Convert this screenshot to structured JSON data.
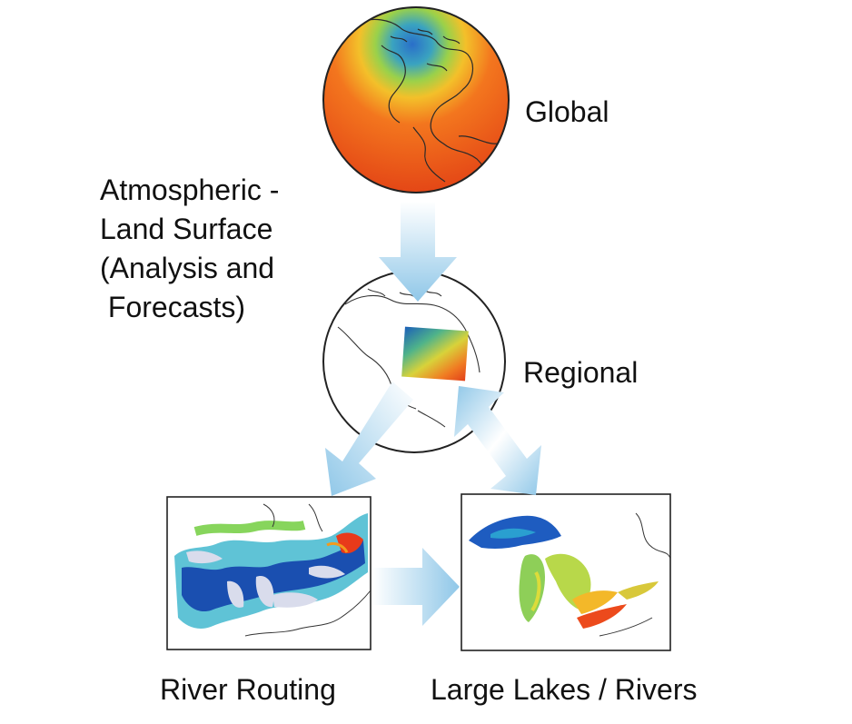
{
  "labels": {
    "global": "Global",
    "regional": "Regional",
    "river_routing": "River Routing",
    "large_lakes": "Large Lakes / Rivers",
    "atmospheric": [
      "Atmospheric -",
      "Land Surface",
      "(Analysis and",
      " Forecasts)"
    ]
  },
  "colors": {
    "arrow_light": "#eef6fb",
    "arrow_dark": "#8ec5e6",
    "warm": "#e84a1c",
    "hot": "#f58a1e",
    "mid": "#8ed04a",
    "cool": "#1a6fc2",
    "cold": "#0a2f8e",
    "land_outline": "#1a1a1a",
    "lake_fill": "#d9dcec"
  },
  "icons": [
    "global-globe-icon",
    "regional-globe-icon",
    "river-routing-map-icon",
    "large-lakes-map-icon"
  ]
}
